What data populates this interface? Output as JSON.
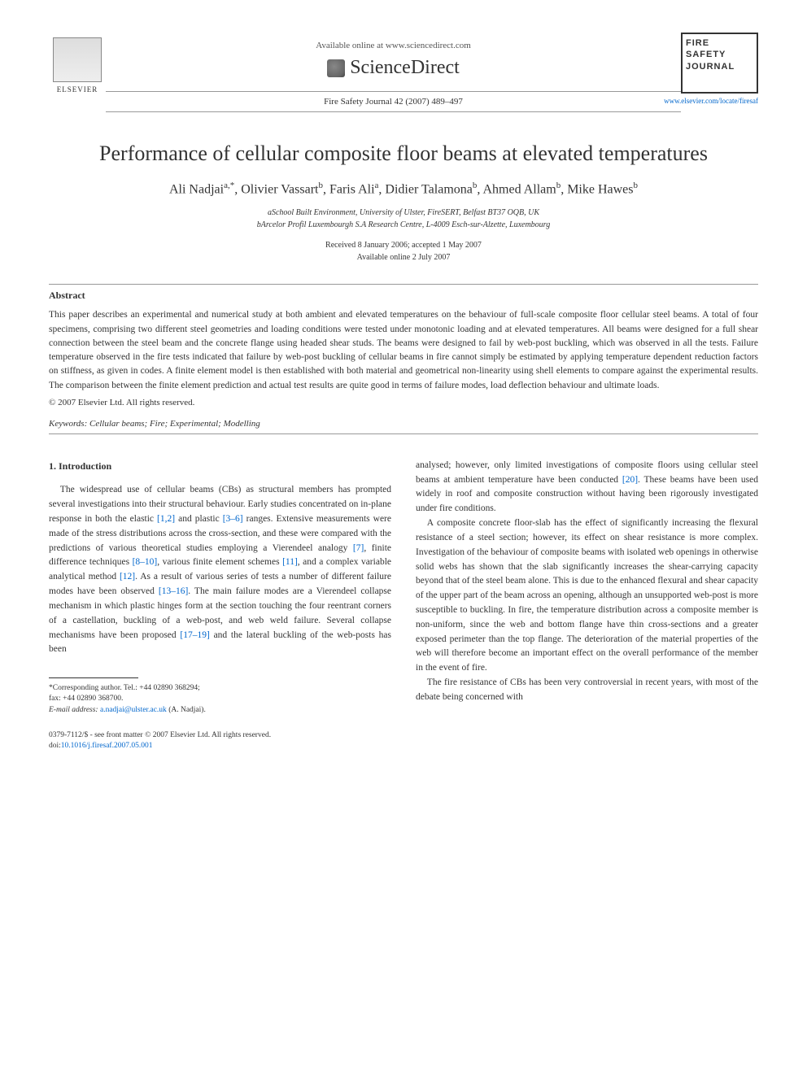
{
  "header": {
    "available_online": "Available online at www.sciencedirect.com",
    "sciencedirect": "ScienceDirect",
    "journal_ref": "Fire Safety Journal 42 (2007) 489–497",
    "elsevier": "ELSEVIER",
    "cover_line1": "FIRE",
    "cover_line2": "SAFETY",
    "cover_line3": "JOURNAL",
    "cover_link": "www.elsevier.com/locate/firesaf"
  },
  "title": "Performance of cellular composite floor beams at elevated temperatures",
  "authors_html": "Ali Nadjai<sup>a,*</sup>, Olivier Vassart<sup>b</sup>, Faris Ali<sup>a</sup>, Didier Talamona<sup>b</sup>, Ahmed Allam<sup>b</sup>, Mike Hawes<sup>b</sup>",
  "affiliations": {
    "a": "aSchool Built Environment, University of Ulster, FireSERT, Belfast BT37 OQB, UK",
    "b": "bArcelor Profil Luxembourgh S.A Research Centre, L-4009 Esch-sur-Alzette, Luxembourg"
  },
  "dates": {
    "received": "Received 8 January 2006; accepted 1 May 2007",
    "online": "Available online 2 July 2007"
  },
  "abstract": {
    "heading": "Abstract",
    "text": "This paper describes an experimental and numerical study at both ambient and elevated temperatures on the behaviour of full-scale composite floor cellular steel beams. A total of four specimens, comprising two different steel geometries and loading conditions were tested under monotonic loading and at elevated temperatures. All beams were designed for a full shear connection between the steel beam and the concrete flange using headed shear studs. The beams were designed to fail by web-post buckling, which was observed in all the tests. Failure temperature observed in the fire tests indicated that failure by web-post buckling of cellular beams in fire cannot simply be estimated by applying temperature dependent reduction factors on stiffness, as given in codes. A finite element model is then established with both material and geometrical non-linearity using shell elements to compare against the experimental results. The comparison between the finite element prediction and actual test results are quite good in terms of failure modes, load deflection behaviour and ultimate loads.",
    "copyright": "© 2007 Elsevier Ltd. All rights reserved."
  },
  "keywords": {
    "label": "Keywords:",
    "text": "Cellular beams; Fire; Experimental; Modelling"
  },
  "section1": {
    "heading": "1. Introduction",
    "col1_p1a": "The widespread use of cellular beams (CBs) as structural members has prompted several investigations into their structural behaviour. Early studies concentrated on in-plane response in both the elastic ",
    "ref1": "[1,2]",
    "col1_p1b": " and plastic ",
    "ref2": "[3–6]",
    "col1_p1c": " ranges. Extensive measurements were made of the stress distributions across the cross-section, and these were compared with the predictions of various theoretical studies employing a Vierendeel analogy ",
    "ref3": "[7]",
    "col1_p1d": ", finite difference techniques ",
    "ref4": "[8–10]",
    "col1_p1e": ", various finite element schemes ",
    "ref5": "[11]",
    "col1_p1f": ", and a complex variable analytical method ",
    "ref6": "[12]",
    "col1_p1g": ". As a result of various series of tests a number of different failure modes have been observed ",
    "ref7": "[13–16]",
    "col1_p1h": ". The main failure modes are a Vierendeel collapse mechanism in which plastic hinges form at the section touching the four reentrant corners of a castellation, buckling of a web-post, and web weld failure. Several collapse mechanisms have been proposed ",
    "ref8": "[17–19]",
    "col1_p1i": " and the lateral buckling of the web-posts has been",
    "col2_p1a": "analysed; however, only limited investigations of composite floors using cellular steel beams at ambient temperature have been conducted ",
    "ref9": "[20]",
    "col2_p1b": ". These beams have been used widely in roof and composite construction without having been rigorously investigated under fire conditions.",
    "col2_p2": "A composite concrete floor-slab has the effect of significantly increasing the flexural resistance of a steel section; however, its effect on shear resistance is more complex. Investigation of the behaviour of composite beams with isolated web openings in otherwise solid webs has shown that the slab significantly increases the shear-carrying capacity beyond that of the steel beam alone. This is due to the enhanced flexural and shear capacity of the upper part of the beam across an opening, although an unsupported web-post is more susceptible to buckling. In fire, the temperature distribution across a composite member is non-uniform, since the web and bottom flange have thin cross-sections and a greater exposed perimeter than the top flange. The deterioration of the material properties of the web will therefore become an important effect on the overall performance of the member in the event of fire.",
    "col2_p3": "The fire resistance of CBs has been very controversial in recent years, with most of the debate being concerned with"
  },
  "footnote": {
    "corr": "*Corresponding author. Tel.: +44 02890 368294;",
    "fax": "fax: +44 02890 368700.",
    "email_label": "E-mail address:",
    "email": "a.nadjai@ulster.ac.uk",
    "email_author": "(A. Nadjai)."
  },
  "footer": {
    "issn": "0379-7112/$ - see front matter © 2007 Elsevier Ltd. All rights reserved.",
    "doi_label": "doi:",
    "doi": "10.1016/j.firesaf.2007.05.001"
  },
  "colors": {
    "link": "#0066cc",
    "text": "#333333",
    "rule": "#999999"
  }
}
